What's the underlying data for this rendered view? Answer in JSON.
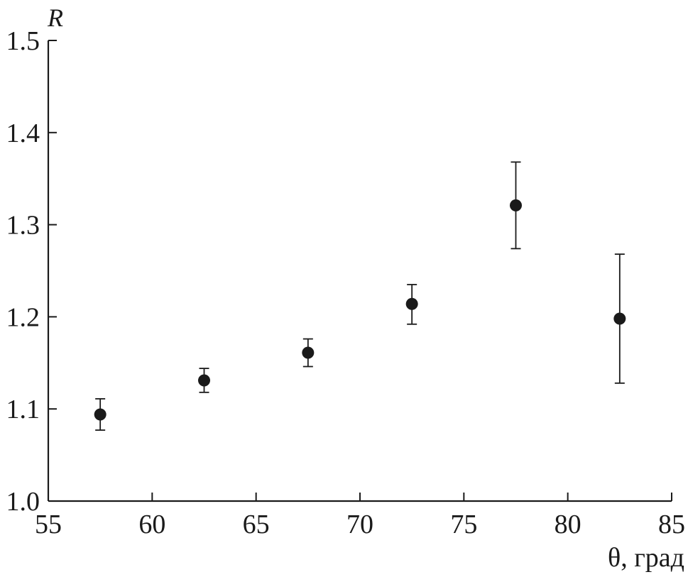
{
  "chart_data": {
    "type": "scatter",
    "xlabel": "θ, град",
    "ylabel": "R",
    "xlim": [
      55,
      85
    ],
    "ylim": [
      1.0,
      1.5
    ],
    "x_ticks": [
      "55",
      "60",
      "65",
      "70",
      "75",
      "80",
      "85"
    ],
    "y_ticks": [
      "1.0",
      "1.1",
      "1.2",
      "1.3",
      "1.4",
      "1.5"
    ],
    "grid": false,
    "series": [
      {
        "points": [
          {
            "x": 57.5,
            "y": 1.094,
            "err_low": 1.077,
            "err_high": 1.111
          },
          {
            "x": 62.5,
            "y": 1.131,
            "err_low": 1.118,
            "err_high": 1.144
          },
          {
            "x": 67.5,
            "y": 1.161,
            "err_low": 1.146,
            "err_high": 1.176
          },
          {
            "x": 72.5,
            "y": 1.214,
            "err_low": 1.192,
            "err_high": 1.235
          },
          {
            "x": 77.5,
            "y": 1.321,
            "err_low": 1.274,
            "err_high": 1.368
          },
          {
            "x": 82.5,
            "y": 1.198,
            "err_low": 1.128,
            "err_high": 1.268
          }
        ],
        "color": "#1a1a1a"
      }
    ]
  }
}
